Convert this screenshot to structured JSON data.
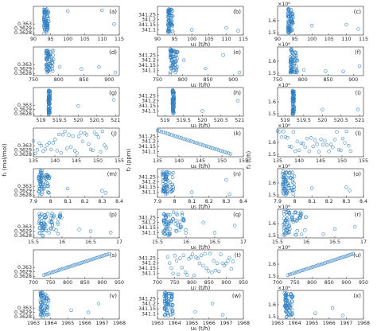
{
  "figure": {
    "col_ylabels": [
      "f₁ (mol/mol)",
      "f₂ (ppm)",
      "f₃ (t/h)"
    ],
    "multiplier_label": "×10⁶"
  },
  "chart_data": {
    "type": "scatter",
    "layout": {
      "rows": 8,
      "cols": 3
    },
    "marker_color": "#2f7fc1",
    "column_ylim": [
      [
        0.36275,
        0.3634
      ],
      [
        341.05,
        341.33
      ],
      [
        1.48,
        1.72
      ]
    ],
    "column_yticks": [
      [
        "0.3628",
        "0.3629",
        "0.363"
      ],
      [
        "341.1",
        "341.15",
        "341.2",
        "341.25"
      ],
      [
        "1.5",
        "1.6"
      ]
    ],
    "rows": [
      {
        "xlim": [
          90,
          115
        ],
        "xticks": [
          "90",
          "95",
          "100",
          "105",
          "110",
          "115"
        ],
        "xlabel": "u₁ (t/h)",
        "bulk": [
          93,
          94.5
        ],
        "spread": [
          [
            100,
            0.36329,
            341.1
          ],
          [
            110,
            0.36331,
            341.12
          ],
          [
            113.5,
            0.363,
            341.09
          ]
        ],
        "panels": [
          "(a)",
          "(b)",
          "(c)"
        ],
        "diag": false
      },
      {
        "xlim": [
          750,
          920
        ],
        "xticks": [
          "750",
          "800",
          "850",
          "900"
        ],
        "xlabel": "u₂ (t/h)",
        "bulk": [
          775,
          790
        ],
        "spread": [
          [
            802,
            0.36295,
            341.2
          ],
          [
            845,
            0.3629,
            341.12
          ],
          [
            880,
            0.36295,
            341.25
          ],
          [
            912,
            0.36282,
            341.08
          ]
        ],
        "panels": [
          "(d)",
          "(e)",
          "(f)"
        ],
        "diag": false
      },
      {
        "xlim": [
          518.8,
          521.1
        ],
        "xticks": [
          "519",
          "519.5",
          "520",
          "520.5",
          "521"
        ],
        "xlabel": "u₃ (t/h)",
        "bulk": [
          519.2,
          519.25
        ],
        "spread": [
          [
            520.0,
            0.36298,
            341.1
          ],
          [
            520.95,
            0.36312,
            341.2
          ]
        ],
        "panels": [
          "(g)",
          "(h)",
          "(i)"
        ],
        "diag": false
      },
      {
        "xlim": [
          135,
          155
        ],
        "xticks": [
          "135",
          "140",
          "145",
          "150",
          "155"
        ],
        "xlabel": "u₄ (t/h)",
        "bulk": [
          135,
          152
        ],
        "spread": [],
        "panels": [
          "(j)",
          "(k)",
          "(l)"
        ],
        "diag": "neg"
      },
      {
        "xlim": [
          7.9,
          8.4
        ],
        "xticks": [
          "7.9",
          "8",
          "8.1",
          "8.2",
          "8.3",
          "8.4"
        ],
        "xlabel": "u₅ (t/h)",
        "bulk": [
          7.93,
          8.0
        ],
        "spread": [
          [
            8.1,
            0.36295,
            341.1
          ],
          [
            8.3,
            0.3629,
            341.22
          ],
          [
            8.32,
            0.36285,
            341.08
          ]
        ],
        "panels": [
          "(m)",
          "(n)",
          "(o)"
        ],
        "diag": false
      },
      {
        "xlim": [
          15.5,
          17
        ],
        "xticks": [
          "15.5",
          "16",
          "16.5",
          "17"
        ],
        "xlabel": "u₆ (t/h)",
        "bulk": [
          15.6,
          16.0
        ],
        "spread": [
          [
            16.3,
            0.36294,
            341.2
          ],
          [
            16.5,
            0.3629,
            341.1
          ],
          [
            16.85,
            0.36287,
            341.17
          ]
        ],
        "panels": [
          "(p)",
          "(q)",
          "(r)"
        ],
        "diag": false
      },
      {
        "xlim": [
          700,
          950
        ],
        "xticks": [
          "700",
          "750",
          "800",
          "850",
          "900",
          "950"
        ],
        "xlabel": "u₇ (t/h)",
        "bulk": [
          730,
          920
        ],
        "spread": [],
        "panels": [
          "(s)",
          "(t)",
          "(u)"
        ],
        "diag": "pos"
      },
      {
        "xlim": [
          1963,
          1968
        ],
        "xticks": [
          "1963",
          "1964",
          "1965",
          "1966",
          "1967",
          "1968"
        ],
        "xlabel": "u₈ (t/h)",
        "bulk": [
          1963.4,
          1963.9
        ],
        "spread": [
          [
            1965.2,
            0.36295,
            341.12
          ],
          [
            1966.2,
            0.3629,
            341.2
          ],
          [
            1966.8,
            0.3631,
            341.09
          ]
        ],
        "panels": [
          "(v)",
          "(w)",
          "(x)"
        ],
        "diag": false
      }
    ]
  }
}
